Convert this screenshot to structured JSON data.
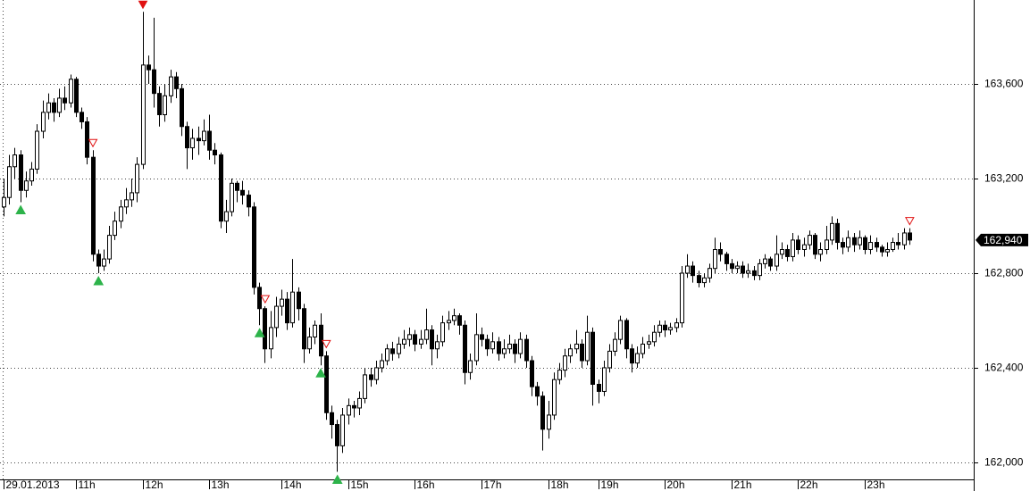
{
  "chart_data": {
    "type": "candlestick",
    "categories": [
      "29.01.2013",
      null,
      null,
      null,
      null,
      null,
      null,
      null,
      null,
      null,
      null,
      null,
      null,
      "11h",
      null,
      null,
      null,
      null,
      null,
      null,
      null,
      null,
      null,
      null,
      null,
      "12h",
      null,
      null,
      null,
      null,
      null,
      null,
      null,
      null,
      null,
      null,
      null,
      "13h",
      null,
      null,
      null,
      null,
      null,
      null,
      null,
      null,
      null,
      null,
      null,
      null,
      "14h",
      null,
      null,
      null,
      null,
      null,
      null,
      null,
      null,
      null,
      null,
      null,
      "15h",
      null,
      null,
      null,
      null,
      null,
      null,
      null,
      null,
      null,
      null,
      null,
      "16h",
      null,
      null,
      null,
      null,
      null,
      null,
      null,
      null,
      null,
      null,
      null,
      "17h",
      null,
      null,
      null,
      null,
      null,
      null,
      null,
      null,
      null,
      null,
      null,
      "18h",
      null,
      null,
      null,
      null,
      null,
      null,
      null,
      null,
      "19h",
      null,
      null,
      null,
      null,
      null,
      null,
      null,
      null,
      null,
      null,
      null,
      "20h",
      null,
      null,
      null,
      null,
      null,
      null,
      null,
      null,
      null,
      null,
      null,
      "21h",
      null,
      null,
      null,
      null,
      null,
      null,
      null,
      null,
      null,
      null,
      null,
      "22h",
      null,
      null,
      null,
      null,
      null,
      null,
      null,
      null,
      null,
      null,
      null,
      "23h",
      null,
      null,
      null,
      null,
      null,
      null,
      null,
      null
    ],
    "open": [
      163080,
      163120,
      163250,
      163300,
      163150,
      163190,
      163240,
      163400,
      163480,
      163520,
      163480,
      163540,
      163520,
      163620,
      163480,
      163440,
      163290,
      162880,
      162830,
      162860,
      162960,
      163020,
      163080,
      163110,
      163140,
      163260,
      163680,
      163660,
      163560,
      163470,
      163550,
      163630,
      163580,
      163420,
      163330,
      163370,
      163360,
      163400,
      163320,
      163300,
      163020,
      163060,
      163180,
      163150,
      163130,
      163080,
      162740,
      162650,
      162480,
      162570,
      162660,
      162690,
      162590,
      162720,
      162650,
      162480,
      162530,
      162580,
      162450,
      162210,
      162160,
      162070,
      162200,
      162240,
      162230,
      162270,
      162370,
      162350,
      162400,
      162430,
      162480,
      162460,
      162500,
      162520,
      162540,
      162500,
      162520,
      162560,
      162480,
      162510,
      162590,
      162600,
      162620,
      162580,
      162380,
      162430,
      162540,
      162520,
      162480,
      162510,
      162460,
      162480,
      162500,
      162460,
      162520,
      162430,
      162320,
      162280,
      162140,
      162200,
      162350,
      162390,
      162450,
      162480,
      162500,
      162430,
      162550,
      162330,
      162300,
      162400,
      162470,
      162520,
      162600,
      162480,
      162420,
      162460,
      162500,
      162510,
      162550,
      162580,
      162560,
      162570,
      162590,
      162800,
      162830,
      162790,
      162760,
      162780,
      162820,
      162900,
      162880,
      162840,
      162820,
      162830,
      162800,
      162810,
      162790,
      162840,
      162860,
      162830,
      162880,
      162900,
      162870,
      162940,
      162900,
      162920,
      162960,
      162880,
      162900,
      162940,
      163010,
      162930,
      162910,
      162950,
      162920,
      162950,
      162900,
      162930,
      162910,
      162890,
      162900,
      162930,
      162920,
      162970
    ],
    "high": [
      163200,
      163300,
      163330,
      163320,
      163230,
      163270,
      163430,
      163530,
      163560,
      163540,
      163580,
      163590,
      163640,
      163630,
      163500,
      163460,
      163320,
      162900,
      162900,
      163000,
      163060,
      163110,
      163160,
      163200,
      163290,
      163905,
      163720,
      163880,
      163590,
      163600,
      163660,
      163650,
      163600,
      163440,
      163410,
      163420,
      163450,
      163470,
      163350,
      163310,
      163110,
      163200,
      163190,
      163190,
      163150,
      163100,
      162760,
      162660,
      162640,
      162700,
      162730,
      162720,
      162860,
      162740,
      162670,
      162570,
      162600,
      162630,
      162470,
      162240,
      162180,
      162230,
      162270,
      162260,
      162300,
      162400,
      162400,
      162430,
      162460,
      162500,
      162510,
      162530,
      162560,
      162570,
      162560,
      162560,
      162650,
      162580,
      162540,
      162620,
      162640,
      162650,
      162630,
      162600,
      162460,
      162630,
      162570,
      162540,
      162550,
      162530,
      162520,
      162540,
      162520,
      162550,
      162540,
      162450,
      162340,
      162300,
      162260,
      162380,
      162420,
      162480,
      162500,
      162560,
      162520,
      162620,
      162570,
      162350,
      162430,
      162500,
      162550,
      162620,
      162610,
      162500,
      162490,
      162530,
      162540,
      162580,
      162600,
      162600,
      162590,
      162610,
      162830,
      162880,
      162850,
      162810,
      162800,
      162840,
      162950,
      162930,
      162890,
      162860,
      162850,
      162850,
      162840,
      162830,
      162860,
      162880,
      162870,
      162960,
      162930,
      162920,
      162970,
      162960,
      162950,
      162980,
      162970,
      162930,
      163000,
      163040,
      163030,
      162950,
      162980,
      162970,
      162980,
      162960,
      162960,
      162950,
      162920,
      162930,
      162950,
      162970,
      162990,
      162990
    ],
    "low": [
      163040,
      163090,
      163200,
      163100,
      163120,
      163170,
      163220,
      163370,
      163450,
      163440,
      163460,
      163490,
      163500,
      163460,
      163410,
      163260,
      162850,
      162800,
      162810,
      162840,
      162940,
      162990,
      163050,
      163080,
      163100,
      163240,
      163600,
      163500,
      163420,
      163440,
      163520,
      163540,
      163380,
      163240,
      163280,
      163300,
      163340,
      163280,
      163260,
      162990,
      162970,
      163040,
      163100,
      163090,
      163040,
      162710,
      162580,
      162420,
      162440,
      162530,
      162620,
      162560,
      162570,
      162600,
      162420,
      162460,
      162500,
      162410,
      162180,
      162100,
      161960,
      162040,
      162160,
      162190,
      162200,
      162250,
      162320,
      162330,
      162380,
      162410,
      162430,
      162440,
      162480,
      162490,
      162470,
      162480,
      162500,
      162410,
      162440,
      162490,
      162560,
      162580,
      162540,
      162330,
      162350,
      162410,
      162490,
      162450,
      162460,
      162430,
      162440,
      162460,
      162420,
      162440,
      162400,
      162280,
      162240,
      162050,
      162100,
      162180,
      162330,
      162360,
      162420,
      162460,
      162400,
      162410,
      162240,
      162250,
      162280,
      162380,
      162450,
      162500,
      162440,
      162380,
      162400,
      162440,
      162480,
      162490,
      162530,
      162530,
      162540,
      162550,
      162570,
      162780,
      162760,
      162740,
      162740,
      162760,
      162800,
      162850,
      162810,
      162800,
      162800,
      162780,
      162780,
      162770,
      162770,
      162820,
      162810,
      162810,
      162860,
      162850,
      162850,
      162880,
      162870,
      162900,
      162860,
      162850,
      162880,
      162920,
      162900,
      162880,
      162890,
      162890,
      162900,
      162880,
      162880,
      162890,
      162870,
      162870,
      162890,
      162900,
      162900,
      162920
    ],
    "close": [
      163120,
      163250,
      163300,
      163150,
      163190,
      163240,
      163400,
      163480,
      163520,
      163480,
      163540,
      163520,
      163620,
      163480,
      163440,
      163290,
      162880,
      162830,
      162860,
      162960,
      163020,
      163080,
      163110,
      163140,
      163260,
      163680,
      163660,
      163560,
      163470,
      163550,
      163630,
      163580,
      163420,
      163330,
      163370,
      163360,
      163400,
      163320,
      163300,
      163020,
      163060,
      163180,
      163150,
      163130,
      163080,
      162740,
      162650,
      162480,
      162570,
      162660,
      162690,
      162590,
      162720,
      162650,
      162480,
      162530,
      162580,
      162450,
      162210,
      162160,
      162070,
      162200,
      162240,
      162230,
      162270,
      162370,
      162350,
      162400,
      162430,
      162480,
      162460,
      162500,
      162520,
      162540,
      162500,
      162520,
      162560,
      162480,
      162510,
      162590,
      162600,
      162620,
      162580,
      162380,
      162430,
      162540,
      162520,
      162480,
      162510,
      162460,
      162480,
      162500,
      162460,
      162520,
      162430,
      162320,
      162280,
      162140,
      162200,
      162350,
      162390,
      162450,
      162480,
      162500,
      162430,
      162550,
      162330,
      162300,
      162400,
      162470,
      162520,
      162600,
      162480,
      162420,
      162460,
      162500,
      162510,
      162550,
      162580,
      162560,
      162570,
      162590,
      162800,
      162830,
      162790,
      162760,
      162780,
      162820,
      162900,
      162880,
      162840,
      162820,
      162830,
      162800,
      162810,
      162790,
      162840,
      162860,
      162830,
      162880,
      162900,
      162870,
      162940,
      162900,
      162920,
      162960,
      162880,
      162900,
      162940,
      163010,
      162930,
      162910,
      162950,
      162920,
      162950,
      162900,
      162930,
      162910,
      162890,
      162900,
      162930,
      162920,
      162970,
      162940
    ],
    "up_color": "#ffffff",
    "down_color": "#000000",
    "signals": [
      {
        "candle": 3,
        "kind": "buy",
        "style": "filled",
        "color": "#2db34a"
      },
      {
        "candle": 17,
        "kind": "buy",
        "style": "filled",
        "color": "#2db34a"
      },
      {
        "candle": 46,
        "kind": "buy",
        "style": "filled",
        "color": "#2db34a"
      },
      {
        "candle": 57,
        "kind": "buy",
        "style": "filled",
        "color": "#2db34a"
      },
      {
        "candle": 60,
        "kind": "buy",
        "style": "filled",
        "color": "#2db34a"
      },
      {
        "candle": 25,
        "kind": "sell",
        "style": "filled",
        "color": "#e01010"
      },
      {
        "candle": 16,
        "kind": "sell",
        "style": "hollow",
        "color": "#e01010"
      },
      {
        "candle": 47,
        "kind": "sell",
        "style": "hollow",
        "color": "#e01010"
      },
      {
        "candle": 58,
        "kind": "sell",
        "style": "hollow",
        "color": "#e01010"
      },
      {
        "candle": 163,
        "kind": "sell",
        "style": "hollow",
        "color": "#e01010"
      }
    ],
    "ylim": [
      161928,
      163955
    ],
    "yticks": [
      {
        "value": 162000,
        "label": "162,000"
      },
      {
        "value": 162400,
        "label": "162,400"
      },
      {
        "value": 162800,
        "label": "162,800"
      },
      {
        "value": 163200,
        "label": "163,200"
      },
      {
        "value": 163600,
        "label": "163,600"
      }
    ],
    "last_price": {
      "value": 162940,
      "label": "162,940"
    },
    "grid": true
  }
}
